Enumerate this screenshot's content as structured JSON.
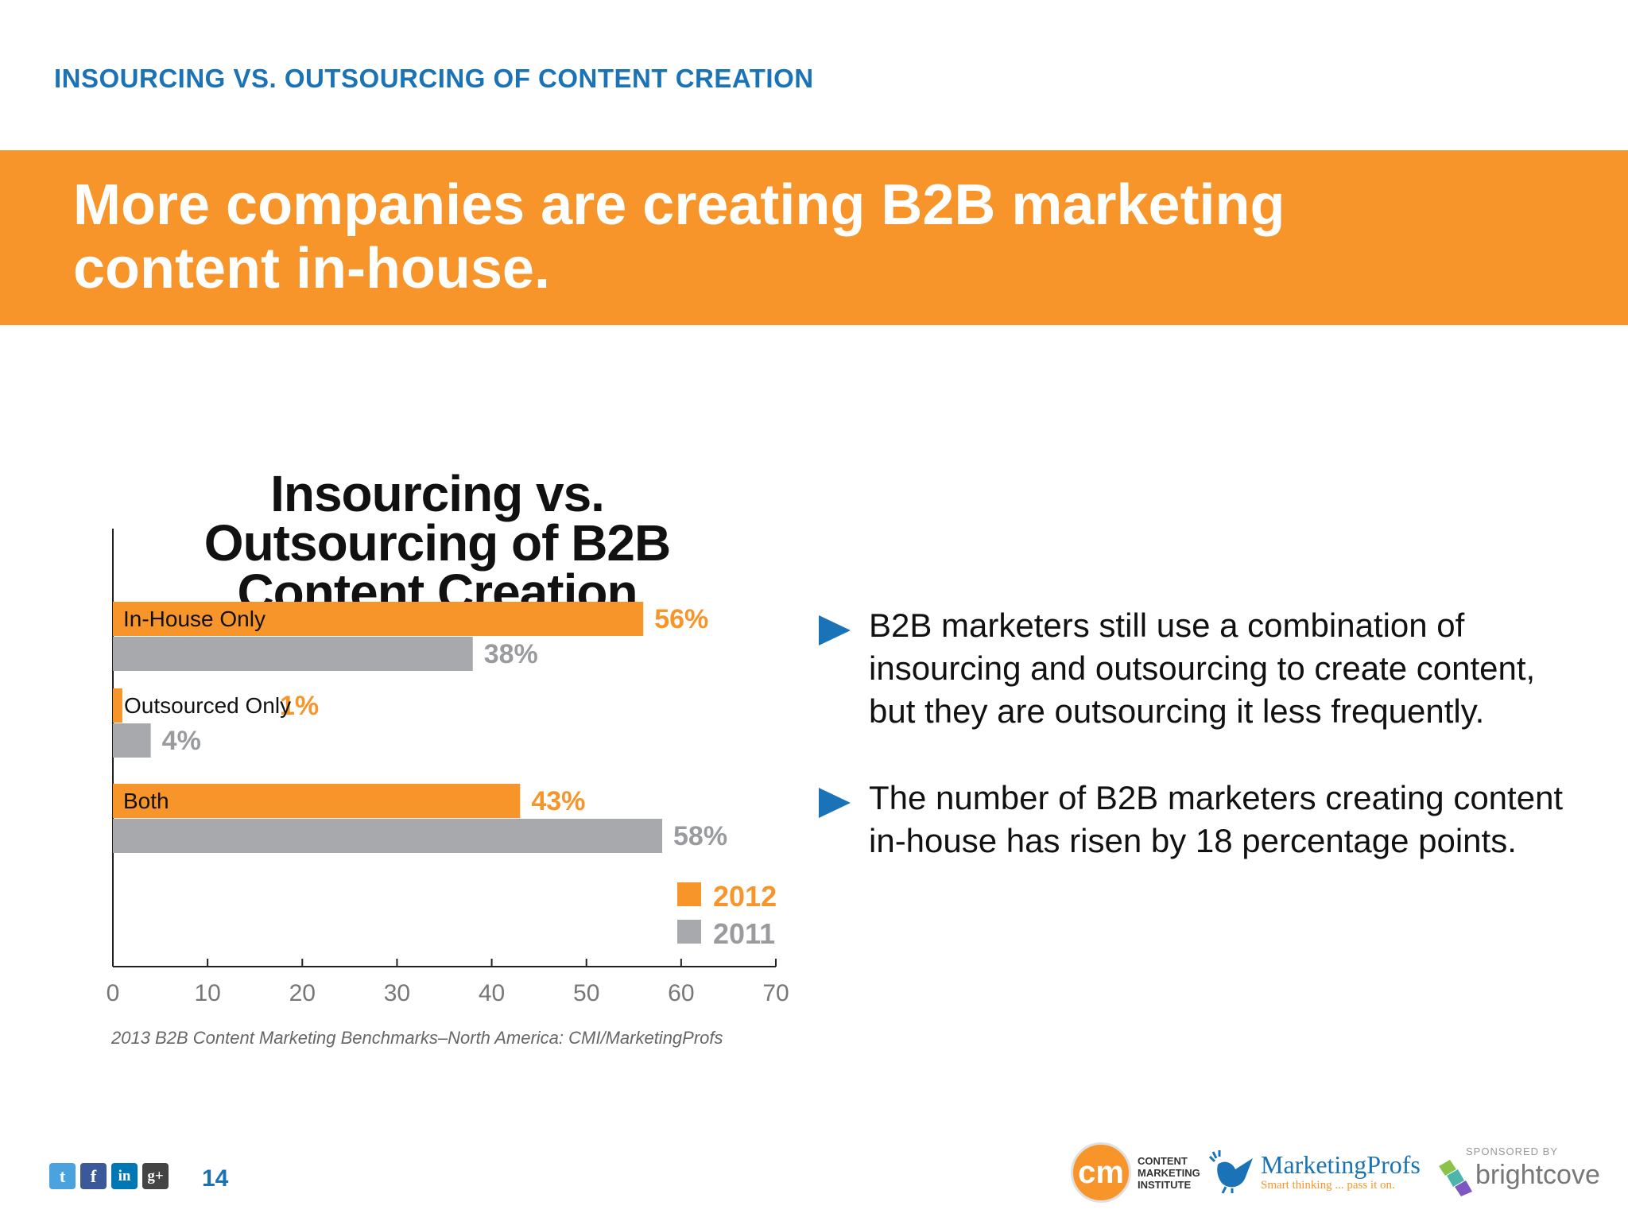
{
  "header": {
    "kicker": "INSOURCING VS. OUTSOURCING OF CONTENT CREATION",
    "title": "More companies are creating B2B marketing content in-house."
  },
  "colors": {
    "accent_orange": "#f7952b",
    "accent_blue": "#1a73b6",
    "series_2012": "#f7952b",
    "series_2011": "#a7a9ac"
  },
  "chart_data": {
    "type": "bar",
    "orientation": "horizontal",
    "title": "Insourcing vs. Outsourcing of B2B Content Creation",
    "categories": [
      "In-House Only",
      "Outsourced Only",
      "Both"
    ],
    "series": [
      {
        "name": "2012",
        "values": [
          56,
          1,
          43
        ],
        "labels": [
          "56%",
          "1%",
          "43%"
        ]
      },
      {
        "name": "2011",
        "values": [
          38,
          4,
          58
        ],
        "labels": [
          "38%",
          "4%",
          "58%"
        ]
      }
    ],
    "xlim": [
      0,
      70
    ],
    "xticks": [
      0,
      10,
      20,
      30,
      40,
      50,
      60,
      70
    ],
    "legend_position": "bottom-right",
    "grid": false,
    "source": "2013 B2B Content Marketing Benchmarks–North America: CMI/MarketingProfs"
  },
  "bullets": [
    "B2B marketers still use a combination of insourcing and outsourcing to create content, but they are outsourcing it less frequently.",
    "The number of B2B marketers creating content in-house has risen by 18 percentage points."
  ],
  "footer": {
    "page_number": "14",
    "social_icons": [
      "twitter-icon",
      "facebook-icon",
      "linkedin-icon",
      "google-plus-icon"
    ],
    "logos": {
      "cmi": [
        "CONTENT",
        "MARKETING",
        "INSTITUTE"
      ],
      "cmi_mark": "cm",
      "marketingprofs_name": "MarketingProfs",
      "marketingprofs_tagline": "Smart thinking ... pass it on.",
      "sponsor_label": "SPONSORED BY",
      "sponsor_name": "brightcove"
    }
  }
}
